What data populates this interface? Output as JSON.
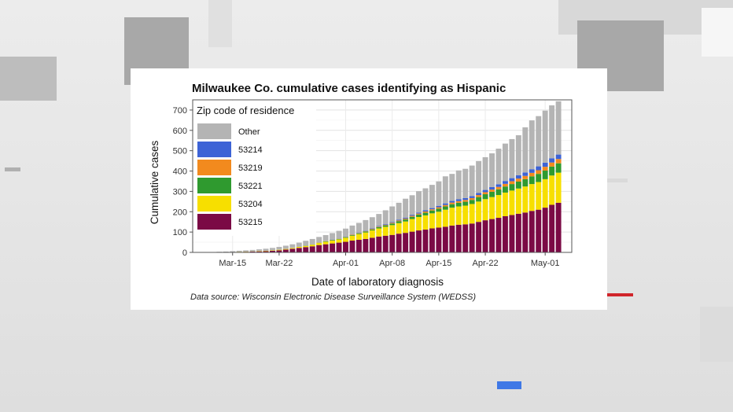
{
  "chart_data": {
    "type": "bar",
    "stacked": true,
    "title": "Milwaukee Co. cumulative cases identifying as Hispanic",
    "xlabel": "Date of laboratory diagnosis",
    "ylabel": "Cumulative cases",
    "ylim": [
      0,
      750
    ],
    "yticks": [
      0,
      100,
      200,
      300,
      400,
      500,
      600,
      700
    ],
    "xlim": [
      "2020-03-09",
      "2020-05-05"
    ],
    "xticks": [
      "2020-03-15",
      "2020-03-22",
      "2020-04-01",
      "2020-04-08",
      "2020-04-15",
      "2020-04-22",
      "2020-05-01"
    ],
    "xtick_labels": [
      "Mar-15",
      "Mar-22",
      "Apr-01",
      "Apr-08",
      "Apr-15",
      "Apr-22",
      "May-01"
    ],
    "grid": true,
    "legend_title": "Zip code of residence",
    "legend_position": "top-left",
    "data_source": "Data source: Wisconsin Electronic Disease Surveillance System (WEDSS)",
    "categories": [
      "2020-03-13",
      "2020-03-14",
      "2020-03-15",
      "2020-03-16",
      "2020-03-17",
      "2020-03-18",
      "2020-03-19",
      "2020-03-20",
      "2020-03-21",
      "2020-03-22",
      "2020-03-23",
      "2020-03-24",
      "2020-03-25",
      "2020-03-26",
      "2020-03-27",
      "2020-03-28",
      "2020-03-29",
      "2020-03-30",
      "2020-03-31",
      "2020-04-01",
      "2020-04-02",
      "2020-04-03",
      "2020-04-04",
      "2020-04-05",
      "2020-04-06",
      "2020-04-07",
      "2020-04-08",
      "2020-04-09",
      "2020-04-10",
      "2020-04-11",
      "2020-04-12",
      "2020-04-13",
      "2020-04-14",
      "2020-04-15",
      "2020-04-16",
      "2020-04-17",
      "2020-04-18",
      "2020-04-19",
      "2020-04-20",
      "2020-04-21",
      "2020-04-22",
      "2020-04-23",
      "2020-04-24",
      "2020-04-25",
      "2020-04-26",
      "2020-04-27",
      "2020-04-28",
      "2020-04-29",
      "2020-04-30",
      "2020-05-01",
      "2020-05-02",
      "2020-05-03"
    ],
    "series": [
      {
        "name": "53215",
        "color": "#7b0a45",
        "values": [
          1,
          1,
          2,
          2,
          3,
          4,
          5,
          6,
          8,
          10,
          14,
          18,
          22,
          26,
          30,
          36,
          40,
          44,
          48,
          52,
          58,
          62,
          66,
          72,
          78,
          82,
          86,
          92,
          96,
          102,
          108,
          112,
          118,
          122,
          126,
          132,
          136,
          138,
          142,
          150,
          158,
          164,
          170,
          178,
          184,
          190,
          196,
          204,
          210,
          220,
          234,
          244
        ]
      },
      {
        "name": "53204",
        "color": "#f7df00",
        "values": [
          0,
          0,
          0,
          1,
          1,
          1,
          2,
          2,
          2,
          3,
          3,
          4,
          5,
          6,
          8,
          10,
          12,
          14,
          16,
          20,
          24,
          28,
          32,
          36,
          40,
          44,
          48,
          52,
          56,
          62,
          66,
          70,
          74,
          78,
          84,
          88,
          90,
          92,
          96,
          100,
          104,
          108,
          112,
          116,
          120,
          124,
          128,
          132,
          136,
          140,
          144,
          148
        ]
      },
      {
        "name": "53221",
        "color": "#2f9a2f",
        "values": [
          0,
          0,
          0,
          0,
          0,
          0,
          0,
          0,
          0,
          0,
          0,
          0,
          0,
          1,
          1,
          1,
          2,
          2,
          2,
          3,
          3,
          4,
          5,
          5,
          6,
          7,
          8,
          9,
          10,
          11,
          12,
          13,
          14,
          15,
          16,
          17,
          18,
          19,
          20,
          22,
          24,
          26,
          28,
          30,
          32,
          34,
          36,
          38,
          40,
          42,
          44,
          46
        ]
      },
      {
        "name": "53219",
        "color": "#f28a1e",
        "values": [
          0,
          0,
          0,
          0,
          0,
          0,
          0,
          0,
          0,
          0,
          0,
          0,
          0,
          0,
          0,
          1,
          1,
          1,
          1,
          1,
          2,
          2,
          2,
          3,
          3,
          3,
          4,
          4,
          4,
          5,
          5,
          6,
          6,
          7,
          7,
          8,
          8,
          9,
          9,
          10,
          10,
          11,
          12,
          13,
          14,
          15,
          16,
          17,
          18,
          19,
          20,
          21
        ]
      },
      {
        "name": "53214",
        "color": "#3d63d6",
        "values": [
          0,
          0,
          0,
          0,
          0,
          0,
          0,
          0,
          0,
          0,
          0,
          0,
          0,
          0,
          0,
          0,
          0,
          1,
          1,
          1,
          1,
          2,
          2,
          2,
          3,
          3,
          3,
          4,
          4,
          5,
          5,
          6,
          6,
          7,
          8,
          8,
          9,
          9,
          10,
          10,
          11,
          12,
          13,
          14,
          15,
          16,
          17,
          18,
          19,
          20,
          21,
          22
        ]
      },
      {
        "name": "Other",
        "color": "#b4b4b4",
        "values": [
          2,
          3,
          4,
          5,
          6,
          7,
          8,
          10,
          12,
          14,
          16,
          18,
          21,
          24,
          27,
          28,
          30,
          33,
          38,
          40,
          44,
          47,
          52,
          55,
          59,
          68,
          77,
          83,
          94,
          96,
          105,
          108,
          114,
          120,
          133,
          133,
          142,
          144,
          150,
          157,
          161,
          166,
          175,
          184,
          192,
          197,
          222,
          240,
          247,
          256,
          260,
          262
        ]
      }
    ],
    "legend_order": [
      "Other",
      "53214",
      "53219",
      "53221",
      "53204",
      "53215"
    ]
  }
}
